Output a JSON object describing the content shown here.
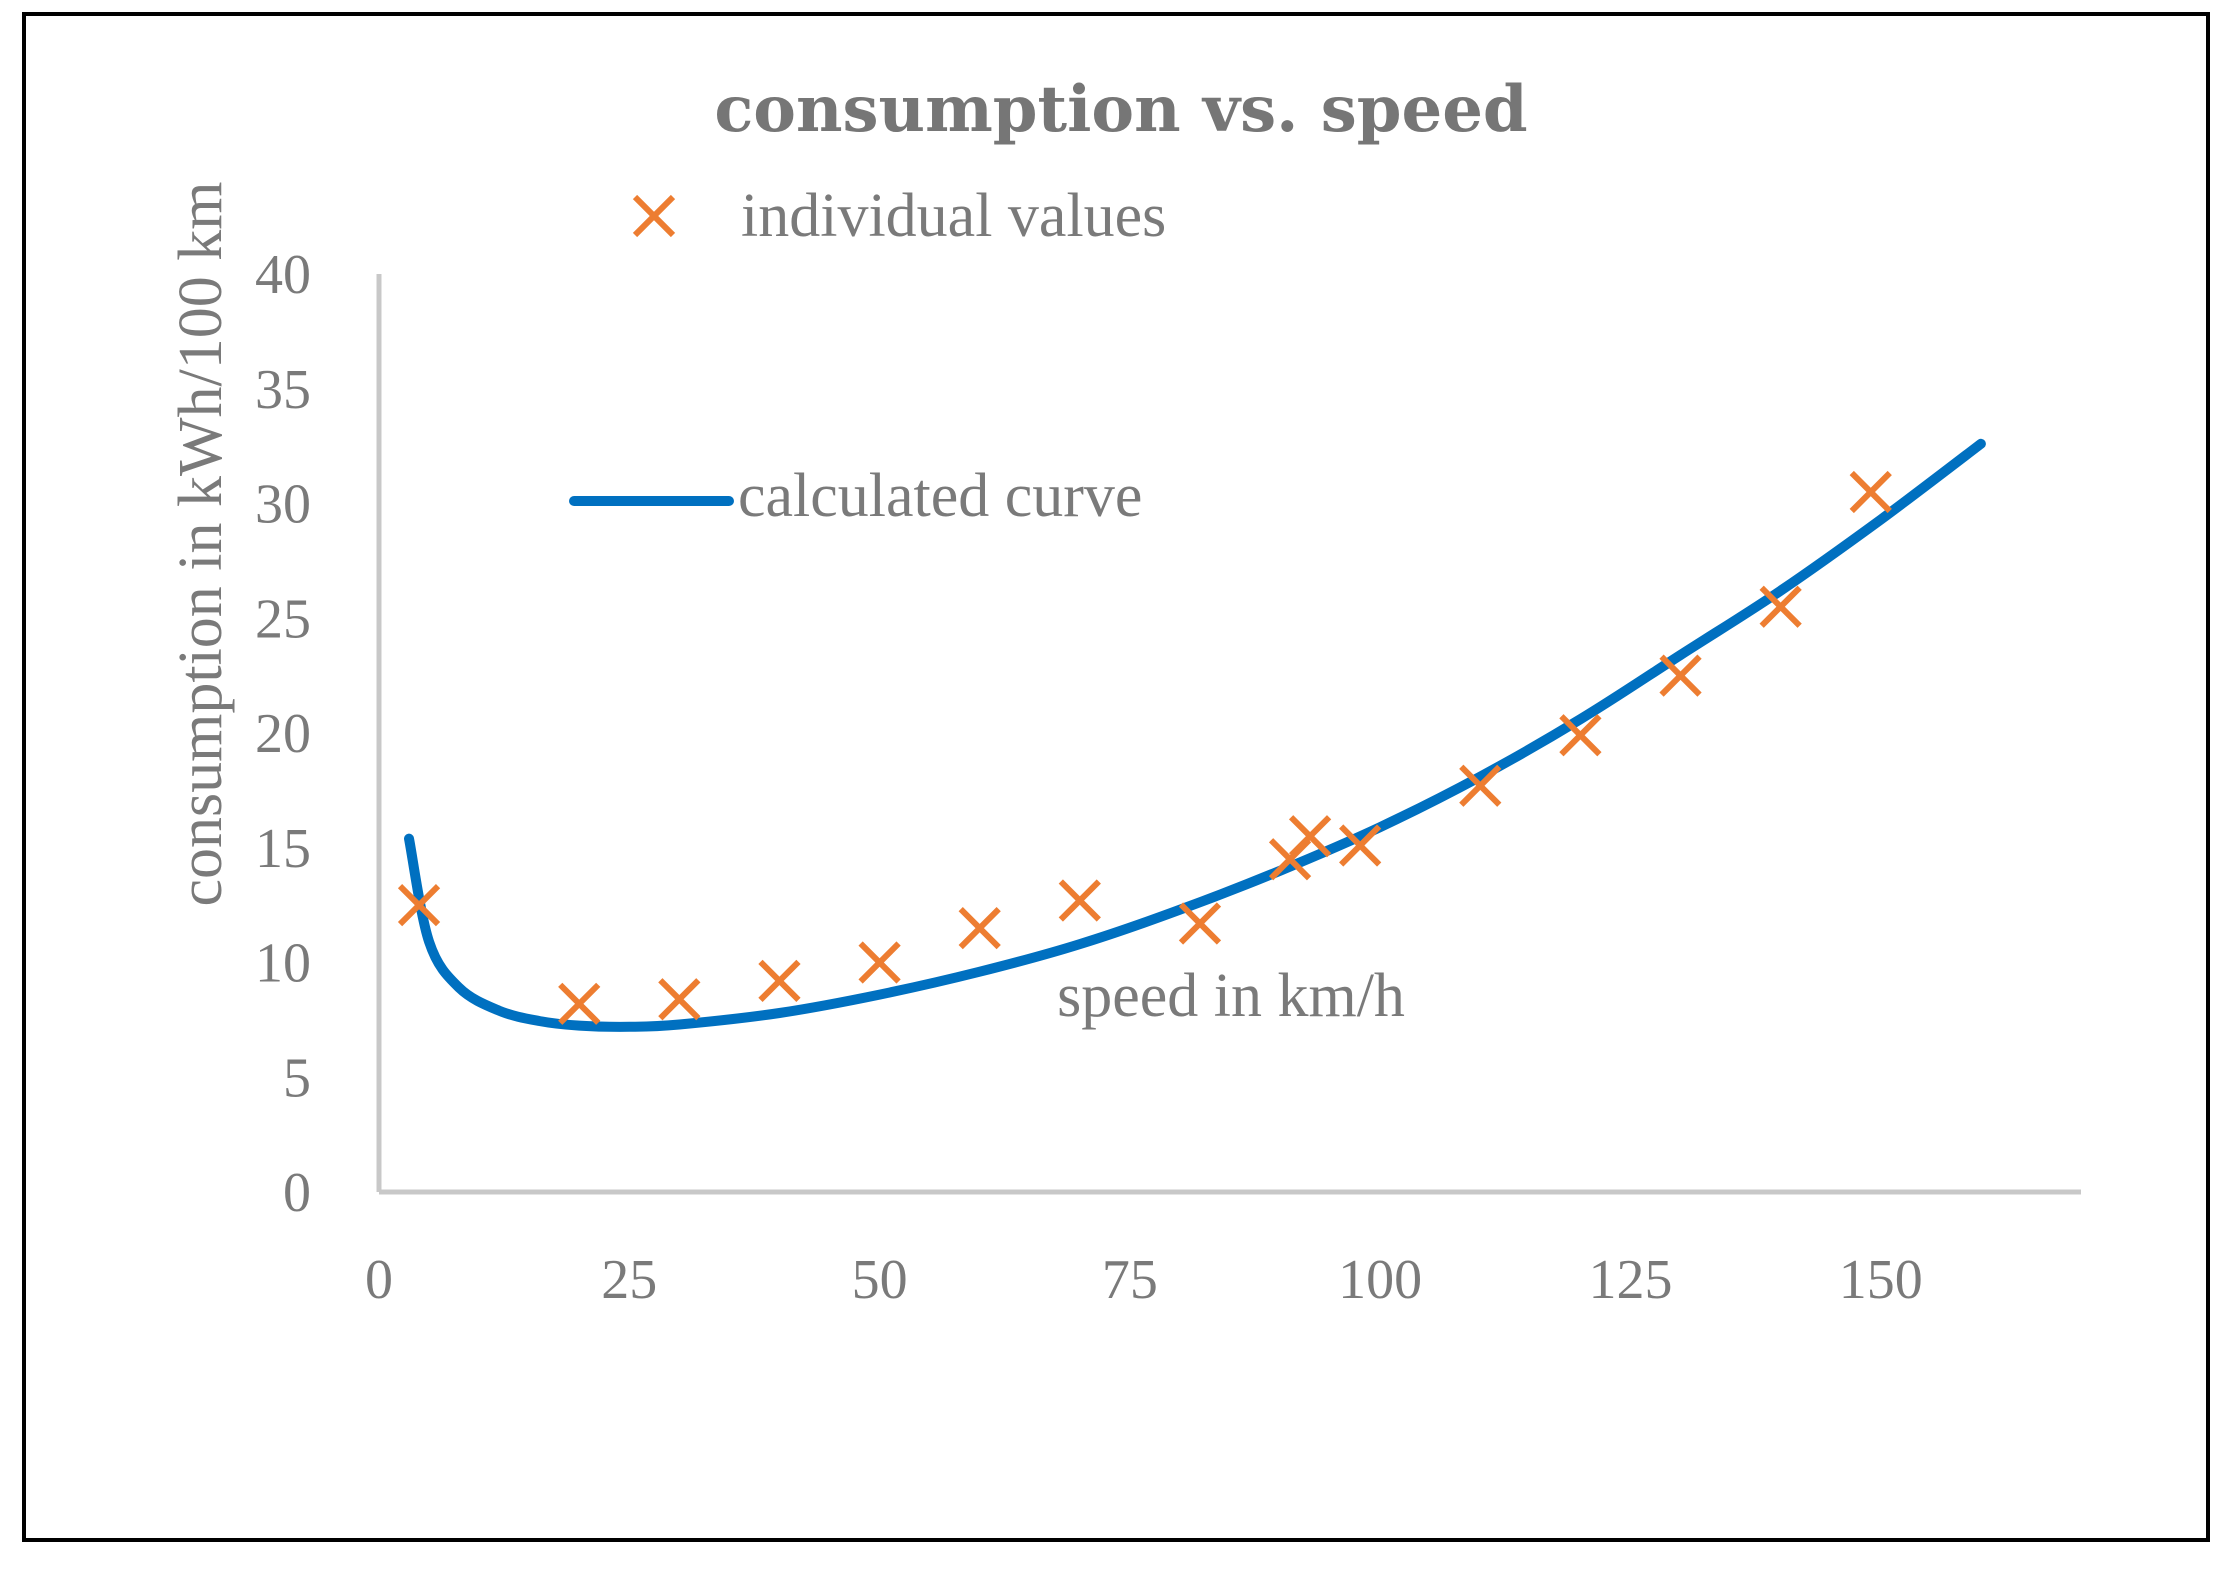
{
  "chart_data": {
    "type": "scatter",
    "title": "consumption vs. speed",
    "xlabel": "speed in km/h",
    "ylabel": "consumption in kWh/100 km",
    "xlim": [
      0,
      170
    ],
    "ylim": [
      0,
      40
    ],
    "xticks": [
      0,
      25,
      50,
      75,
      100,
      125,
      150
    ],
    "yticks": [
      0,
      5,
      10,
      15,
      20,
      25,
      30,
      35,
      40
    ],
    "grid": false,
    "legend_position": "top-left",
    "series": [
      {
        "name": "individual values",
        "kind": "scatter",
        "marker": "x",
        "color": "#ED7D31",
        "points": [
          {
            "x": 4,
            "y": 12.5
          },
          {
            "x": 20,
            "y": 8.2
          },
          {
            "x": 30,
            "y": 8.4
          },
          {
            "x": 40,
            "y": 9.2
          },
          {
            "x": 50,
            "y": 10
          },
          {
            "x": 60,
            "y": 11.5
          },
          {
            "x": 70,
            "y": 12.7
          },
          {
            "x": 82,
            "y": 11.7
          },
          {
            "x": 91,
            "y": 14.5
          },
          {
            "x": 93,
            "y": 15.5
          },
          {
            "x": 98,
            "y": 15.1
          },
          {
            "x": 110,
            "y": 17.7
          },
          {
            "x": 120,
            "y": 19.9
          },
          {
            "x": 130,
            "y": 22.5
          },
          {
            "x": 140,
            "y": 25.5
          },
          {
            "x": 149,
            "y": 30.5
          }
        ]
      },
      {
        "name": "calculated curve",
        "kind": "line",
        "color": "#0070C0",
        "points": [
          {
            "x": 3,
            "y": 15.4
          },
          {
            "x": 5,
            "y": 10.9
          },
          {
            "x": 8,
            "y": 8.9
          },
          {
            "x": 12,
            "y": 7.9
          },
          {
            "x": 16,
            "y": 7.45
          },
          {
            "x": 20,
            "y": 7.25
          },
          {
            "x": 25,
            "y": 7.2
          },
          {
            "x": 30,
            "y": 7.3
          },
          {
            "x": 40,
            "y": 7.8
          },
          {
            "x": 50,
            "y": 8.6
          },
          {
            "x": 60,
            "y": 9.6
          },
          {
            "x": 70,
            "y": 10.8
          },
          {
            "x": 80,
            "y": 12.3
          },
          {
            "x": 90,
            "y": 14.0
          },
          {
            "x": 100,
            "y": 15.9
          },
          {
            "x": 110,
            "y": 18.1
          },
          {
            "x": 120,
            "y": 20.6
          },
          {
            "x": 130,
            "y": 23.4
          },
          {
            "x": 140,
            "y": 26.2
          },
          {
            "x": 150,
            "y": 29.3
          },
          {
            "x": 160,
            "y": 32.6
          }
        ]
      }
    ]
  }
}
